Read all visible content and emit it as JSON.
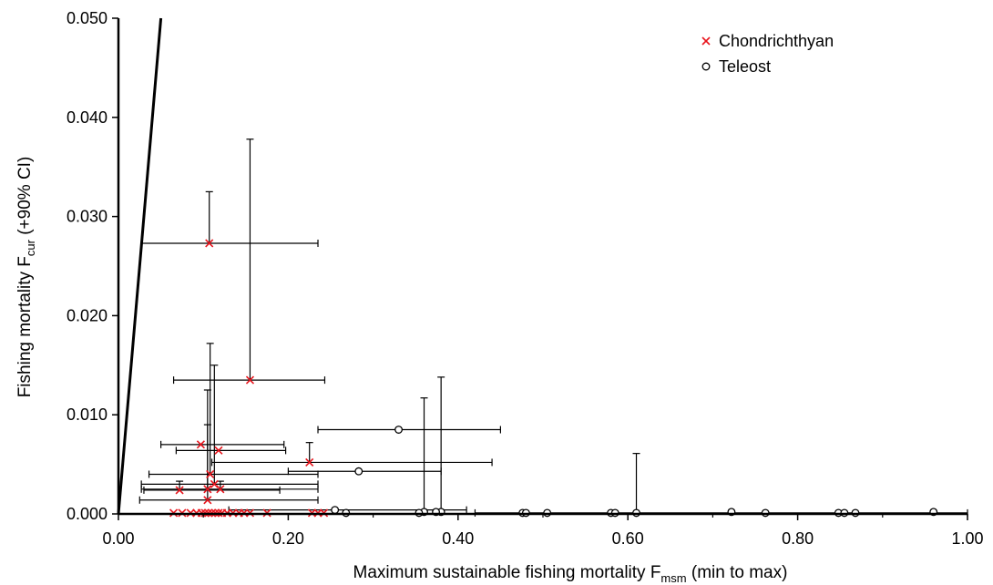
{
  "chart_data": {
    "type": "scatter",
    "xlabel": {
      "main": "Maximum sustainable fishing mortality F",
      "sub": "msm",
      "suffix": " (min to max)"
    },
    "ylabel": {
      "main": "Fishing mortality F",
      "sub": "cur",
      "suffix": " (+90% CI)"
    },
    "xlim": [
      0,
      1
    ],
    "ylim": [
      0,
      0.05
    ],
    "x_ticks": [
      {
        "value": 0.0,
        "label": "0.00"
      },
      {
        "value": 0.2,
        "label": "0.20"
      },
      {
        "value": 0.4,
        "label": "0.40"
      },
      {
        "value": 0.6,
        "label": "0.60"
      },
      {
        "value": 0.8,
        "label": "0.80"
      },
      {
        "value": 1.0,
        "label": "1.00"
      }
    ],
    "y_ticks": [
      {
        "value": 0.0,
        "label": "0.000"
      },
      {
        "value": 0.01,
        "label": "0.010"
      },
      {
        "value": 0.02,
        "label": "0.020"
      },
      {
        "value": 0.03,
        "label": "0.030"
      },
      {
        "value": 0.04,
        "label": "0.040"
      },
      {
        "value": 0.05,
        "label": "0.050"
      }
    ],
    "grid": false,
    "legend_position": "top-right",
    "reference_line": {
      "from": [
        0,
        0
      ],
      "to": [
        0.05,
        0.05
      ]
    },
    "series": [
      {
        "name": "Chondrichthyan",
        "marker": "x",
        "color": "#e8141c",
        "points": [
          {
            "x": 0.107,
            "y": 0.0273,
            "xmin": 0.027,
            "xmax": 0.235,
            "yup": 0.0325
          },
          {
            "x": 0.155,
            "y": 0.0135,
            "xmin": 0.065,
            "xmax": 0.243,
            "yup": 0.0378
          },
          {
            "x": 0.097,
            "y": 0.007,
            "xmin": 0.05,
            "xmax": 0.195
          },
          {
            "x": 0.118,
            "y": 0.0064,
            "xmin": 0.068,
            "xmax": 0.197
          },
          {
            "x": 0.225,
            "y": 0.0052,
            "xmin": 0.11,
            "xmax": 0.44,
            "yup": 0.0072
          },
          {
            "x": 0.108,
            "y": 0.004,
            "xmin": 0.036,
            "xmax": 0.235,
            "yup": 0.0172
          },
          {
            "x": 0.113,
            "y": 0.003,
            "xmin": 0.027,
            "xmax": 0.235,
            "yup": 0.015
          },
          {
            "x": 0.105,
            "y": 0.0025,
            "xmin": 0.027,
            "xmax": 0.235,
            "yup": 0.0125
          },
          {
            "x": 0.072,
            "y": 0.0024,
            "xmin": 0.03,
            "xmax": 0.19,
            "yup": 0.0033
          },
          {
            "x": 0.105,
            "y": 0.0014,
            "xmin": 0.025,
            "xmax": 0.235,
            "yup": 0.009
          },
          {
            "x": 0.12,
            "y": 0.0025,
            "yup": 0.0033
          },
          {
            "x": 0.065,
            "y": 0.0001
          },
          {
            "x": 0.075,
            "y": 0.0001
          },
          {
            "x": 0.085,
            "y": 0.0001
          },
          {
            "x": 0.092,
            "y": 0.0001
          },
          {
            "x": 0.098,
            "y": 0.0001
          },
          {
            "x": 0.102,
            "y": 0.0001
          },
          {
            "x": 0.106,
            "y": 0.0001
          },
          {
            "x": 0.11,
            "y": 0.0001
          },
          {
            "x": 0.114,
            "y": 0.0001
          },
          {
            "x": 0.118,
            "y": 0.0001
          },
          {
            "x": 0.122,
            "y": 0.0001
          },
          {
            "x": 0.128,
            "y": 0.0001
          },
          {
            "x": 0.135,
            "y": 0.0001
          },
          {
            "x": 0.142,
            "y": 0.0001
          },
          {
            "x": 0.148,
            "y": 0.0001
          },
          {
            "x": 0.155,
            "y": 0.0001
          },
          {
            "x": 0.175,
            "y": 0.0001
          },
          {
            "x": 0.228,
            "y": 0.0001
          },
          {
            "x": 0.235,
            "y": 0.0001
          },
          {
            "x": 0.242,
            "y": 0.0001
          }
        ]
      },
      {
        "name": "Teleost",
        "marker": "circle",
        "color": "#000000",
        "points": [
          {
            "x": 0.33,
            "y": 0.0085,
            "xmin": 0.235,
            "xmax": 0.45
          },
          {
            "x": 0.283,
            "y": 0.0043,
            "xmin": 0.2,
            "xmax": 0.38
          },
          {
            "x": 0.255,
            "y": 0.0004,
            "xmin": 0.13,
            "xmax": 0.41
          },
          {
            "x": 0.36,
            "y": 0.0002,
            "yup": 0.0117
          },
          {
            "x": 0.38,
            "y": 0.0002,
            "yup": 0.0138
          },
          {
            "x": 0.61,
            "y": 0.0001,
            "xmin": 0.42,
            "xmax": 1.0,
            "yup": 0.0061
          },
          {
            "x": 0.268,
            "y": 0.0001
          },
          {
            "x": 0.354,
            "y": 0.0001
          },
          {
            "x": 0.374,
            "y": 0.0002
          },
          {
            "x": 0.476,
            "y": 0.0001
          },
          {
            "x": 0.48,
            "y": 0.0001
          },
          {
            "x": 0.505,
            "y": 0.0001
          },
          {
            "x": 0.58,
            "y": 0.0001
          },
          {
            "x": 0.585,
            "y": 0.0001
          },
          {
            "x": 0.722,
            "y": 0.0002
          },
          {
            "x": 0.762,
            "y": 0.0001
          },
          {
            "x": 0.848,
            "y": 0.0001
          },
          {
            "x": 0.855,
            "y": 0.0001
          },
          {
            "x": 0.868,
            "y": 0.0001
          },
          {
            "x": 0.96,
            "y": 0.0002
          }
        ]
      }
    ]
  }
}
